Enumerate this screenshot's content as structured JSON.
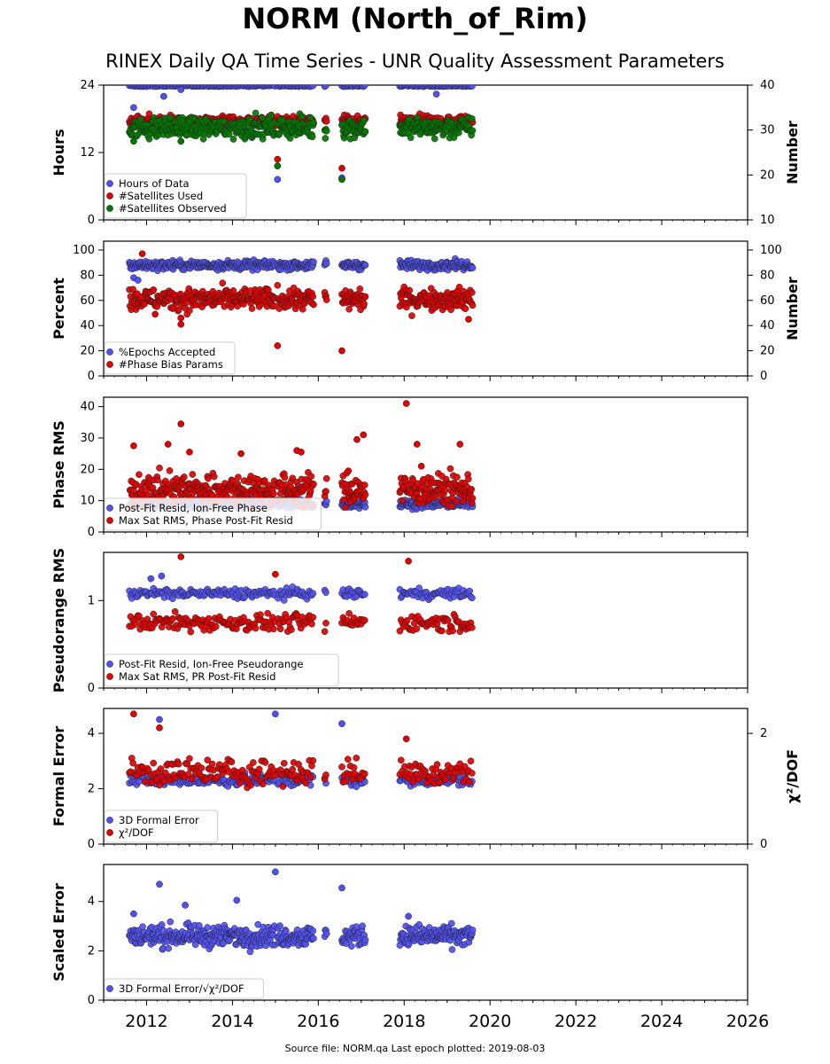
{
  "title": "NORM (North_of_Rim)",
  "subtitle": "RINEX Daily QA Time Series - UNR Quality Assessment Parameters",
  "footer": "Source file: NORM.qa Last epoch plotted: 2019-08-03",
  "colors": {
    "blue": "#5050f0",
    "red": "#e00000",
    "green": "#007800"
  },
  "x_axis": {
    "min": 2011.0,
    "max": 2026.0,
    "ticks": [
      2012,
      2014,
      2016,
      2018,
      2020,
      2022,
      2024,
      2026
    ]
  },
  "chart_data": [
    {
      "type": "scatter",
      "ylabel": "Hours",
      "ylabel_right": "Number",
      "ylim": [
        0,
        24
      ],
      "ylim_right": [
        10,
        40
      ],
      "yticks": [
        0,
        12,
        24
      ],
      "yticks_right": [
        10,
        20,
        30,
        40
      ],
      "legend_loc": "lower-left",
      "series": [
        {
          "name": "Hours of Data",
          "color": "blue",
          "axis": "left",
          "base": 23.9,
          "noise": 0.1,
          "outliers": [
            [
              2011.7,
              20.0
            ],
            [
              2011.8,
              18.5
            ],
            [
              2012.4,
              22.0
            ],
            [
              2012.8,
              23.2
            ],
            [
              2015.05,
              7.2
            ],
            [
              2016.55,
              7.5
            ],
            [
              2018.75,
              22.4
            ]
          ]
        },
        {
          "name": "#Satellites Used",
          "color": "red",
          "axis": "right",
          "base": 32.0,
          "noise": 0.8,
          "outliers": [
            [
              2015.05,
              23.5
            ],
            [
              2016.55,
              21.5
            ],
            [
              2011.7,
              31.0
            ]
          ]
        },
        {
          "name": "#Satellites Observed",
          "color": "green",
          "axis": "right",
          "base": 30.5,
          "noise": 1.6,
          "outliers": [
            [
              2015.05,
              22.0
            ],
            [
              2016.55,
              19.0
            ],
            [
              2012.8,
              27.5
            ],
            [
              2011.7,
              27.5
            ]
          ]
        }
      ]
    },
    {
      "type": "scatter",
      "ylabel": "Percent",
      "ylabel_right": "Number",
      "ylim": [
        0,
        107
      ],
      "ylim_right": [
        0,
        107
      ],
      "yticks": [
        0,
        20,
        40,
        60,
        80,
        100
      ],
      "yticks_right": [
        0,
        20,
        40,
        60,
        80,
        100
      ],
      "legend_loc": "lower-left",
      "series": [
        {
          "name": "%Epochs Accepted",
          "color": "blue",
          "axis": "left",
          "base": 88,
          "noise": 2.5,
          "outliers": [
            [
              2011.7,
              78
            ],
            [
              2011.8,
              76
            ]
          ]
        },
        {
          "name": "#Phase Bias Params",
          "color": "red",
          "axis": "right",
          "base": 61,
          "noise": 6,
          "outliers": [
            [
              2011.9,
              97
            ],
            [
              2012.8,
              41
            ],
            [
              2012.8,
              46
            ],
            [
              2012.2,
              49
            ],
            [
              2015.05,
              24
            ],
            [
              2016.55,
              20
            ],
            [
              2019.5,
              45
            ]
          ]
        }
      ]
    },
    {
      "type": "scatter",
      "ylabel": "Phase RMS",
      "ylim": [
        0,
        43
      ],
      "yticks": [
        0,
        10,
        20,
        30,
        40
      ],
      "legend_loc": "lower-left",
      "series": [
        {
          "name": "Post-Fit Resid, Ion-Free Phase",
          "color": "blue",
          "axis": "left",
          "base": 9.0,
          "noise": 1.0,
          "outliers": []
        },
        {
          "name": "Max Sat RMS, Phase Post-Fit Resid",
          "color": "red",
          "axis": "left",
          "base": 13.5,
          "noise": 3.5,
          "outliers": [
            [
              2012.8,
              34.5
            ],
            [
              2011.7,
              27.5
            ],
            [
              2012.5,
              28.0
            ],
            [
              2013.0,
              25.5
            ],
            [
              2014.2,
              25.0
            ],
            [
              2015.5,
              26.0
            ],
            [
              2015.6,
              25.5
            ],
            [
              2016.9,
              29.5
            ],
            [
              2017.05,
              31.0
            ],
            [
              2018.05,
              41.0
            ],
            [
              2018.3,
              28.0
            ],
            [
              2019.3,
              28.0
            ],
            [
              2018.4,
              21.0
            ],
            [
              2016.7,
              19.5
            ]
          ]
        }
      ]
    },
    {
      "type": "scatter",
      "ylabel": "Pseudorange RMS",
      "ylim": [
        0,
        1.55
      ],
      "yticks": [
        0,
        1
      ],
      "legend_loc": "lower-left",
      "series": [
        {
          "name": "Post-Fit Resid, Ion-Free Pseudorange",
          "color": "blue",
          "axis": "left",
          "base": 1.08,
          "noise": 0.04,
          "outliers": [
            [
              2012.1,
              1.25
            ],
            [
              2012.35,
              1.28
            ]
          ]
        },
        {
          "name": "Max Sat RMS, PR Post-Fit Resid",
          "color": "red",
          "axis": "left",
          "base": 0.75,
          "noise": 0.07,
          "outliers": [
            [
              2012.8,
              1.5
            ],
            [
              2015.0,
              1.3
            ],
            [
              2018.1,
              1.45
            ]
          ]
        }
      ]
    },
    {
      "type": "scatter",
      "ylabel": "Formal Error",
      "ylabel_right": "χ²/DOF",
      "ylim": [
        0,
        4.9
      ],
      "ylim_right": [
        0,
        2.45
      ],
      "yticks": [
        0,
        2,
        4
      ],
      "yticks_right": [
        0,
        2
      ],
      "legend_loc": "lower-left",
      "series": [
        {
          "name": "3D Formal Error",
          "color": "blue",
          "axis": "left",
          "base": 2.3,
          "noise": 0.15,
          "outliers": [
            [
              2012.3,
              4.5
            ],
            [
              2015.0,
              4.7
            ],
            [
              2016.55,
              4.35
            ]
          ]
        },
        {
          "name": "χ²/DOF",
          "color": "red",
          "axis": "right",
          "base": 1.3,
          "noise": 0.17,
          "outliers": [
            [
              2011.7,
              2.35
            ],
            [
              2012.3,
              2.1
            ],
            [
              2018.05,
              1.9
            ]
          ]
        }
      ]
    },
    {
      "type": "scatter",
      "ylabel": "Scaled Error",
      "ylim": [
        0,
        5.5
      ],
      "yticks": [
        0,
        2,
        4
      ],
      "legend_loc": "lower-left",
      "series": [
        {
          "name": "3D Formal Error/√χ²/DOF",
          "color": "blue",
          "axis": "left",
          "base": 2.6,
          "noise": 0.3,
          "outliers": [
            [
              2012.3,
              4.7
            ],
            [
              2015.0,
              5.2
            ],
            [
              2016.55,
              4.55
            ],
            [
              2014.1,
              4.05
            ],
            [
              2012.9,
              3.85
            ],
            [
              2011.7,
              3.5
            ],
            [
              2018.1,
              3.4
            ]
          ]
        }
      ]
    }
  ],
  "data_coverage": [
    [
      2011.6,
      2015.0
    ],
    [
      2015.05,
      2015.9
    ],
    [
      2016.15,
      2016.2
    ],
    [
      2016.55,
      2017.1
    ],
    [
      2017.9,
      2019.6
    ]
  ]
}
